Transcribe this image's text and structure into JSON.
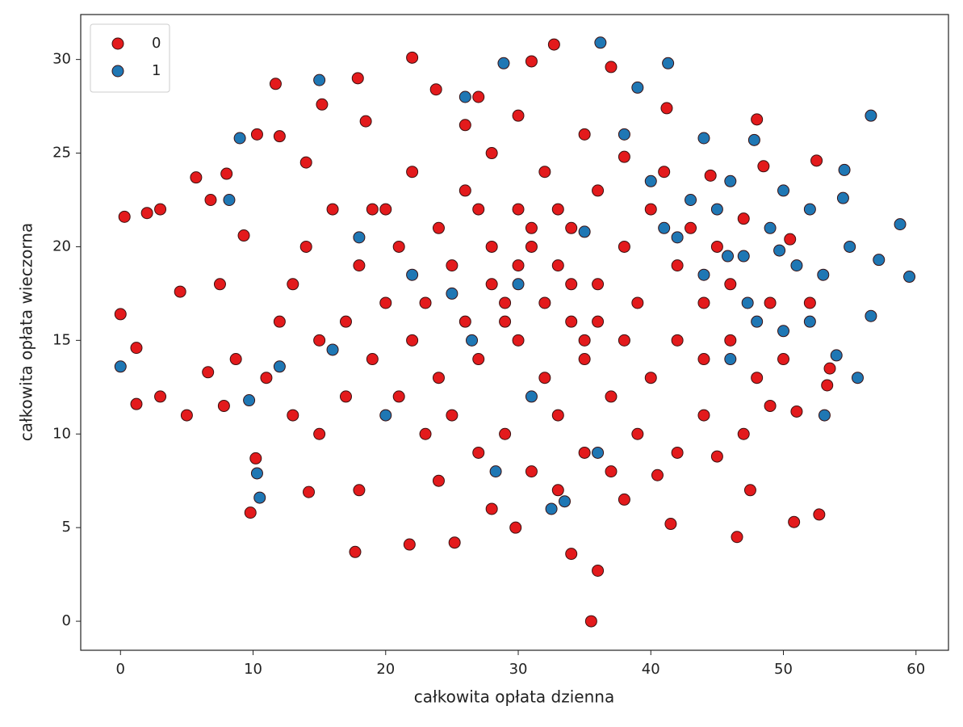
{
  "chart_data": {
    "type": "scatter",
    "x_label": "całkowita opłata dzienna",
    "y_label": "całkowita opłata wieczorna",
    "xlim": [
      -3,
      62.45
    ],
    "ylim": [
      -1.55,
      32.4
    ],
    "xticks": [
      0,
      10,
      20,
      30,
      40,
      50,
      60
    ],
    "yticks": [
      0,
      5,
      10,
      15,
      20,
      25,
      30
    ],
    "legend": "upper left",
    "series": [
      {
        "name": "0",
        "color": "#e31a1c",
        "x": [
          0.3,
          2,
          3,
          0,
          1.2,
          1.2,
          3,
          5,
          4.5,
          5.7,
          11.7,
          22,
          32.7,
          35.5,
          36,
          34,
          17.7,
          46.5,
          50.8,
          52.7,
          48,
          52.5,
          53.3,
          9.8,
          10.2,
          14.2,
          18,
          21.8,
          25.2,
          29.8,
          41.5,
          45,
          47.5,
          51,
          53.5,
          52,
          50.5,
          48.5,
          44.5,
          41.2,
          37,
          31,
          27,
          23.8,
          17.9,
          15.2,
          10.3,
          8,
          6.8,
          7.5,
          6.6,
          7.8,
          8.7,
          9.3,
          12,
          14,
          18.5,
          20,
          22,
          24,
          26,
          28,
          30,
          32,
          34,
          36,
          38,
          40,
          42,
          44,
          46,
          48,
          47,
          44,
          42,
          39,
          37,
          35,
          33,
          31,
          29,
          27,
          25,
          23,
          21,
          19,
          17,
          15,
          13,
          12,
          14,
          16,
          18,
          20,
          22,
          24,
          26,
          28,
          30,
          32,
          34,
          36,
          38,
          40,
          42,
          44,
          46,
          43,
          41,
          39,
          37,
          35,
          33,
          31,
          29,
          27,
          25,
          23,
          21,
          19,
          17,
          15,
          13,
          11,
          24,
          28,
          33,
          38,
          40.5,
          26,
          30,
          35,
          38,
          45,
          47,
          49,
          50,
          49,
          28,
          30,
          32,
          34,
          29,
          31,
          33,
          35,
          27,
          36
        ],
        "y": [
          21.6,
          21.8,
          22,
          16.4,
          14.6,
          11.6,
          12,
          11,
          17.6,
          23.7,
          28.7,
          30.1,
          30.8,
          0,
          2.7,
          3.6,
          3.7,
          4.5,
          5.3,
          5.7,
          26.8,
          24.6,
          12.6,
          5.8,
          8.7,
          6.9,
          7,
          4.1,
          4.2,
          5,
          5.2,
          8.8,
          7,
          11.2,
          13.5,
          17,
          20.4,
          24.3,
          23.8,
          27.4,
          29.6,
          29.9,
          28,
          28.4,
          29,
          27.6,
          26,
          23.9,
          22.5,
          18,
          13.3,
          11.5,
          14,
          20.6,
          25.9,
          24.5,
          26.7,
          22,
          24,
          21,
          23,
          25,
          22,
          24,
          21,
          23,
          20,
          22,
          19,
          17,
          15,
          13,
          10,
          11,
          9,
          10,
          8,
          9,
          11,
          8,
          10,
          9,
          11,
          10,
          12,
          14,
          12,
          15,
          18,
          16,
          20,
          22,
          19,
          17,
          15,
          13,
          16,
          18,
          15,
          13,
          16,
          18,
          15,
          13,
          15,
          14,
          18,
          21,
          24,
          17,
          12,
          14,
          19,
          20,
          17,
          14,
          19,
          17,
          20,
          22,
          16,
          10,
          11,
          13,
          7.5,
          6,
          7,
          6.5,
          7.8,
          26.5,
          27,
          26,
          24.8,
          20,
          21.5,
          17,
          14,
          11.5,
          20,
          19,
          17,
          18,
          16,
          21,
          22,
          15,
          22,
          16
        ]
      },
      {
        "name": "1",
        "color": "#1f77b4",
        "x": [
          0,
          15,
          28.9,
          36.2,
          41.3,
          56.6,
          58.8,
          59.5,
          57.2,
          56.6,
          55.6,
          53.1,
          10.3,
          10.5,
          9.7,
          8.2,
          9,
          33.5,
          32.5,
          28.3,
          26,
          39,
          44,
          47.8,
          45,
          47,
          49,
          51,
          53,
          54.5,
          54.6,
          55,
          52,
          50,
          46,
          43,
          41,
          40,
          42,
          48,
          50,
          52,
          54,
          46,
          44,
          38,
          35,
          30,
          25,
          22,
          20,
          16,
          12,
          26.5,
          31,
          36,
          18,
          45.8,
          47.3,
          49.7
        ],
        "y": [
          13.6,
          28.9,
          29.8,
          30.9,
          29.8,
          27,
          21.2,
          18.4,
          19.3,
          16.3,
          13,
          11,
          7.9,
          6.6,
          11.8,
          22.5,
          25.8,
          6.4,
          6,
          8,
          28,
          28.5,
          25.8,
          25.7,
          22,
          19.5,
          21,
          19,
          18.5,
          22.6,
          24.1,
          20,
          22,
          23,
          23.5,
          22.5,
          21,
          23.5,
          20.5,
          16,
          15.5,
          16,
          14.2,
          14,
          18.5,
          26,
          20.8,
          18,
          17.5,
          18.5,
          11,
          14.5,
          13.6,
          15,
          12,
          9,
          20.5,
          19.5,
          17,
          19.8
        ]
      }
    ]
  }
}
